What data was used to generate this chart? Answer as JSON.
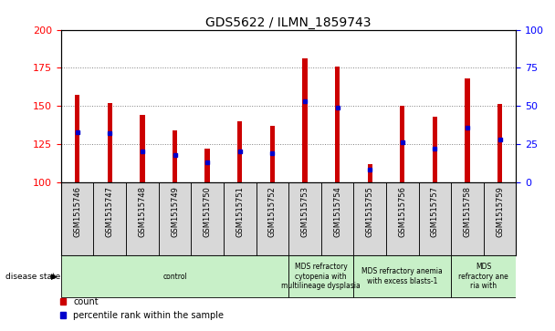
{
  "title": "GDS5622 / ILMN_1859743",
  "samples": [
    "GSM1515746",
    "GSM1515747",
    "GSM1515748",
    "GSM1515749",
    "GSM1515750",
    "GSM1515751",
    "GSM1515752",
    "GSM1515753",
    "GSM1515754",
    "GSM1515755",
    "GSM1515756",
    "GSM1515757",
    "GSM1515758",
    "GSM1515759"
  ],
  "counts": [
    157,
    152,
    144,
    134,
    122,
    140,
    137,
    181,
    176,
    112,
    150,
    143,
    168,
    151
  ],
  "percentile_ranks": [
    33,
    32,
    20,
    18,
    13,
    20,
    19,
    53,
    49,
    8,
    26,
    22,
    36,
    28
  ],
  "ymin": 100,
  "ymax": 200,
  "y_left_ticks": [
    100,
    125,
    150,
    175,
    200
  ],
  "y_right_ticks": [
    0,
    25,
    50,
    75,
    100
  ],
  "bar_color": "#cc0000",
  "percentile_color": "#0000cc",
  "bar_width": 0.15,
  "disease_groups": [
    {
      "label": "control",
      "start": 0,
      "end": 6
    },
    {
      "label": "MDS refractory\ncytopenia with\nmultilineage dysplasia",
      "start": 7,
      "end": 8
    },
    {
      "label": "MDS refractory anemia\nwith excess blasts-1",
      "start": 9,
      "end": 11
    },
    {
      "label": "MDS\nrefractory ane\nria with",
      "start": 12,
      "end": 13
    }
  ],
  "disease_state_label": "disease state",
  "legend_count_label": "count",
  "legend_percentile_label": "percentile rank within the sample",
  "xticklabel_bg": "#d8d8d8",
  "disease_box_color": "#c8f0c8",
  "plot_bg_color": "#ffffff"
}
